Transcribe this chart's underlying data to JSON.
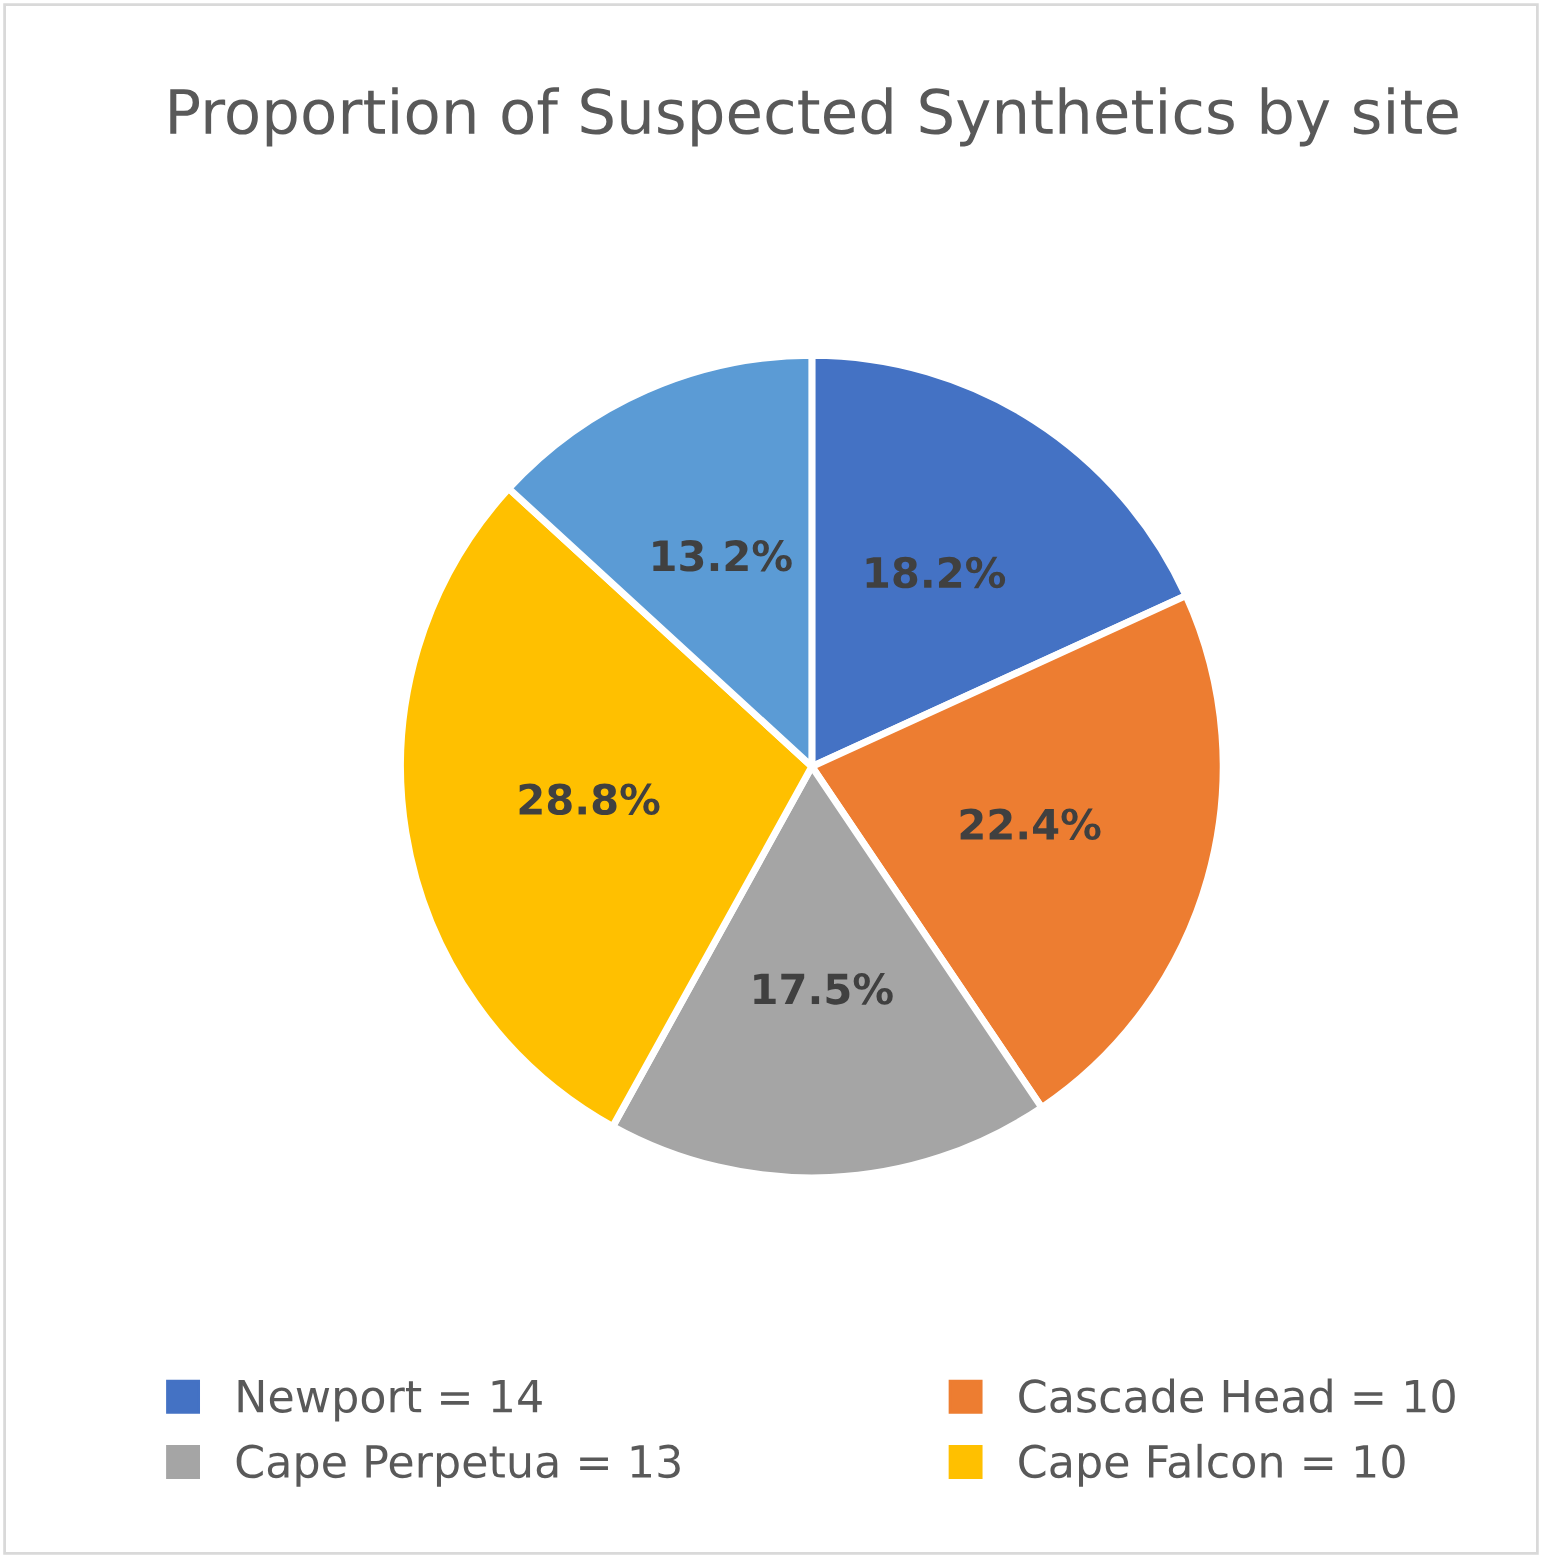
{
  "chart_data": {
    "type": "pie",
    "title": "Proportion of Suspected Synthetics by site",
    "categories": [
      "Newport = 14",
      "Cascade Head = 10",
      "Cape Perpetua = 13",
      "Cape Falcon = 10",
      null
    ],
    "values": [
      18.2,
      22.4,
      17.5,
      28.8,
      13.2
    ],
    "value_labels": [
      "18.2%",
      "22.4%",
      "17.5%",
      "28.8%",
      "13.2%"
    ],
    "colors": [
      "#4472c4",
      "#ed7d31",
      "#a5a5a5",
      "#ffc000",
      "#5b9bd5"
    ],
    "legend": "bottom"
  }
}
